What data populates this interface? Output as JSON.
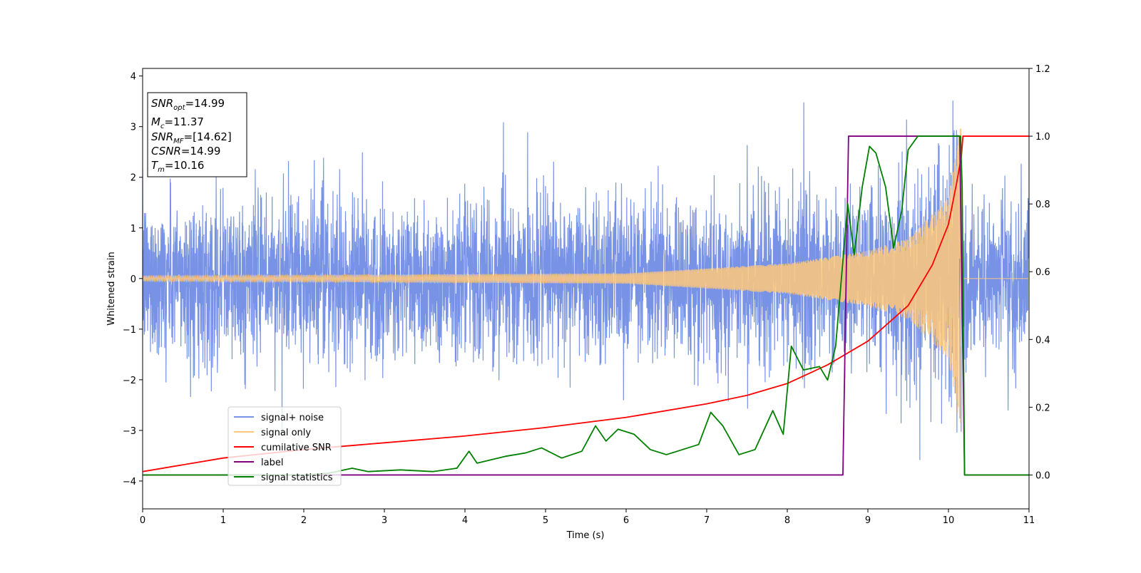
{
  "chart_data": {
    "type": "line",
    "title": "",
    "xlabel": "Time (s)",
    "ylabel": "Whitened strain",
    "xlim": [
      0,
      11
    ],
    "ylim": [
      -4.55,
      4.15
    ],
    "y2lim": [
      -0.1,
      1.2
    ],
    "grid": false,
    "legend_position": "lower-left",
    "x_ticks": [
      {
        "value": 0,
        "label": "0"
      },
      {
        "value": 1,
        "label": "1"
      },
      {
        "value": 2,
        "label": "2"
      },
      {
        "value": 3,
        "label": "3"
      },
      {
        "value": 4,
        "label": "4"
      },
      {
        "value": 5,
        "label": "5"
      },
      {
        "value": 6,
        "label": "6"
      },
      {
        "value": 7,
        "label": "7"
      },
      {
        "value": 8,
        "label": "8"
      },
      {
        "value": 9,
        "label": "9"
      },
      {
        "value": 10,
        "label": "10"
      },
      {
        "value": 11,
        "label": "11"
      }
    ],
    "y_ticks": [
      {
        "value": 4,
        "label": "4"
      },
      {
        "value": 3,
        "label": "3"
      },
      {
        "value": 2,
        "label": "2"
      },
      {
        "value": 1,
        "label": "1"
      },
      {
        "value": 0,
        "label": "0"
      },
      {
        "value": -1,
        "label": "−1"
      },
      {
        "value": -2,
        "label": "−2"
      },
      {
        "value": -3,
        "label": "−3"
      },
      {
        "value": -4,
        "label": "−4"
      }
    ],
    "y2_ticks": [
      {
        "value": 0.0,
        "label": "0.0"
      },
      {
        "value": 0.2,
        "label": "0.2"
      },
      {
        "value": 0.4,
        "label": "0.4"
      },
      {
        "value": 0.6,
        "label": "0.6"
      },
      {
        "value": 0.8,
        "label": "0.8"
      },
      {
        "value": 1.0,
        "label": "1.0"
      },
      {
        "value": 1.2,
        "label": "1.2"
      }
    ],
    "info_box": [
      {
        "name": "SNR",
        "sub": "opt",
        "value": "=14.99"
      },
      {
        "name": "M",
        "sub": "c",
        "value": "=11.37"
      },
      {
        "name": "SNR",
        "sub": "MF",
        "value": "=[14.62]"
      },
      {
        "name": "CSNR",
        "sub": "",
        "value": "=14.99"
      },
      {
        "name": "T",
        "sub": "m",
        "value": "=10.16"
      }
    ],
    "series": [
      {
        "name": "signal+ noise",
        "axis": "left",
        "color": "#7893e6",
        "kind": "noisy-strain",
        "noise_band": [
          -2.5,
          2.5
        ],
        "peak_range": [
          -4.15,
          3.75
        ]
      },
      {
        "name": "signal only",
        "axis": "left",
        "color": "#ffc87a",
        "kind": "chirp",
        "envelope": [
          [
            0,
            0.05
          ],
          [
            6,
            0.1
          ],
          [
            8,
            0.3
          ],
          [
            9,
            0.55
          ],
          [
            9.5,
            0.8
          ],
          [
            10,
            1.6
          ],
          [
            10.16,
            3.1
          ]
        ],
        "merger_time": 10.16
      },
      {
        "name": "cumilative SNR",
        "axis": "right",
        "color": "#ff0000",
        "points": [
          [
            0,
            0.01
          ],
          [
            1,
            0.05
          ],
          [
            2,
            0.075
          ],
          [
            3,
            0.095
          ],
          [
            4,
            0.115
          ],
          [
            5,
            0.14
          ],
          [
            6,
            0.17
          ],
          [
            7,
            0.21
          ],
          [
            7.5,
            0.235
          ],
          [
            8,
            0.27
          ],
          [
            8.5,
            0.325
          ],
          [
            9,
            0.395
          ],
          [
            9.5,
            0.5
          ],
          [
            9.8,
            0.62
          ],
          [
            10.0,
            0.74
          ],
          [
            10.1,
            0.86
          ],
          [
            10.16,
            0.94
          ],
          [
            10.18,
            1.0
          ],
          [
            11,
            1.0
          ]
        ]
      },
      {
        "name": "label",
        "axis": "right",
        "color": "#800080",
        "points": [
          [
            0,
            0.0
          ],
          [
            8.69,
            0.0
          ],
          [
            8.76,
            1.0
          ],
          [
            10.14,
            1.0
          ],
          [
            10.2,
            0.0
          ],
          [
            11,
            0.0
          ]
        ]
      },
      {
        "name": "signal statistics",
        "axis": "right",
        "color": "#008000",
        "points": [
          [
            0,
            0.0
          ],
          [
            2.0,
            0.0
          ],
          [
            2.3,
            0.005
          ],
          [
            2.6,
            0.02
          ],
          [
            2.8,
            0.01
          ],
          [
            3.2,
            0.015
          ],
          [
            3.6,
            0.01
          ],
          [
            3.9,
            0.02
          ],
          [
            4.05,
            0.07
          ],
          [
            4.15,
            0.035
          ],
          [
            4.5,
            0.055
          ],
          [
            4.75,
            0.065
          ],
          [
            4.95,
            0.08
          ],
          [
            5.2,
            0.05
          ],
          [
            5.45,
            0.07
          ],
          [
            5.62,
            0.145
          ],
          [
            5.75,
            0.1
          ],
          [
            5.9,
            0.135
          ],
          [
            6.1,
            0.12
          ],
          [
            6.3,
            0.075
          ],
          [
            6.5,
            0.06
          ],
          [
            6.7,
            0.075
          ],
          [
            6.9,
            0.09
          ],
          [
            7.05,
            0.185
          ],
          [
            7.2,
            0.145
          ],
          [
            7.4,
            0.06
          ],
          [
            7.6,
            0.075
          ],
          [
            7.82,
            0.19
          ],
          [
            7.95,
            0.12
          ],
          [
            8.05,
            0.38
          ],
          [
            8.2,
            0.31
          ],
          [
            8.4,
            0.32
          ],
          [
            8.5,
            0.28
          ],
          [
            8.6,
            0.38
          ],
          [
            8.75,
            0.8
          ],
          [
            8.83,
            0.65
          ],
          [
            8.93,
            0.85
          ],
          [
            9.02,
            0.97
          ],
          [
            9.1,
            0.95
          ],
          [
            9.22,
            0.85
          ],
          [
            9.32,
            0.67
          ],
          [
            9.42,
            0.78
          ],
          [
            9.5,
            0.96
          ],
          [
            9.62,
            1.0
          ],
          [
            9.9,
            1.0
          ],
          [
            10.15,
            1.0
          ],
          [
            10.17,
            0.85
          ],
          [
            10.2,
            0.0
          ],
          [
            11,
            0.0
          ]
        ]
      }
    ]
  }
}
